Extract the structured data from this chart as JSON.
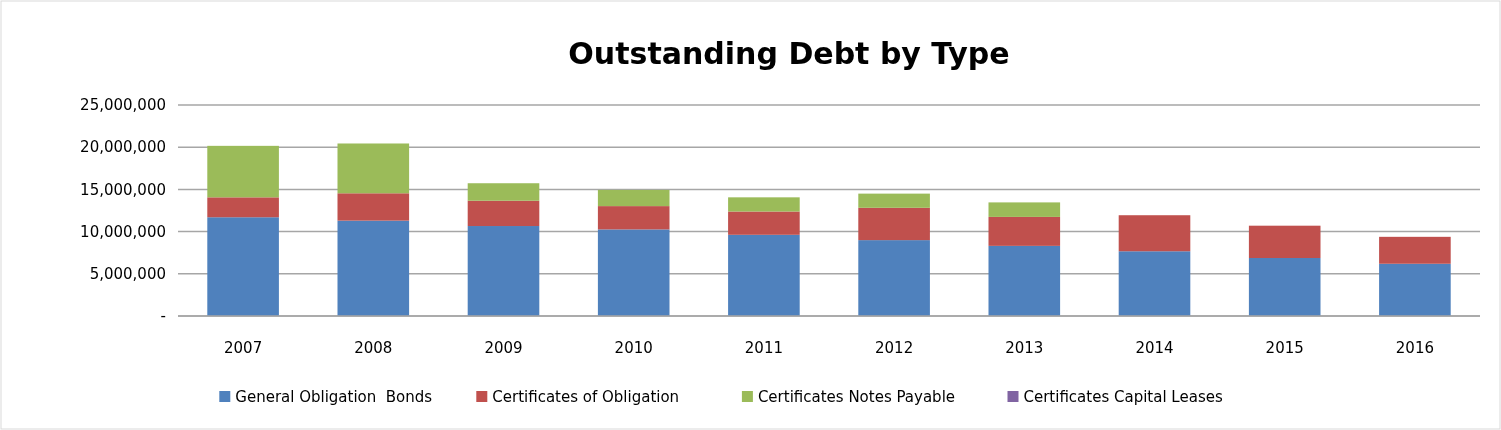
{
  "chart_data": {
    "type": "bar",
    "title": "Outstanding Debt by Type",
    "stacked": true,
    "categories": [
      "2007",
      "2008",
      "2009",
      "2010",
      "2011",
      "2012",
      "2013",
      "2014",
      "2015",
      "2016"
    ],
    "series": [
      {
        "name": "General Obligation  Bonds",
        "color": "#4f81bd",
        "values": [
          11700000,
          11300000,
          10660000,
          10260000,
          9620000,
          8990000,
          8310000,
          7670000,
          6870000,
          6190000
        ]
      },
      {
        "name": "Certificates of Obligation",
        "color": "#c0504d",
        "values": [
          2360000,
          3240000,
          3000000,
          2760000,
          2760000,
          3830000,
          3430000,
          4270000,
          3830000,
          3190000
        ]
      },
      {
        "name": "Certificates Notes Payable",
        "color": "#9bbb59",
        "values": [
          6100000,
          5900000,
          2070000,
          1920000,
          1680000,
          1680000,
          1720000,
          0,
          0,
          0
        ]
      },
      {
        "name": "Certificates Capital Leases",
        "color": "#8064a2",
        "values": [
          0,
          0,
          0,
          0,
          0,
          0,
          0,
          0,
          0,
          0
        ]
      }
    ],
    "ylim": [
      0,
      25000000
    ],
    "yticks": [
      {
        "value": 0,
        "label": "-"
      },
      {
        "value": 5000000,
        "label": "5,000,000"
      },
      {
        "value": 10000000,
        "label": "10,000,000"
      },
      {
        "value": 15000000,
        "label": "15,000,000"
      },
      {
        "value": 20000000,
        "label": "20,000,000"
      },
      {
        "value": 25000000,
        "label": "25,000,000"
      }
    ],
    "grid": "y",
    "legend": "bottom"
  }
}
